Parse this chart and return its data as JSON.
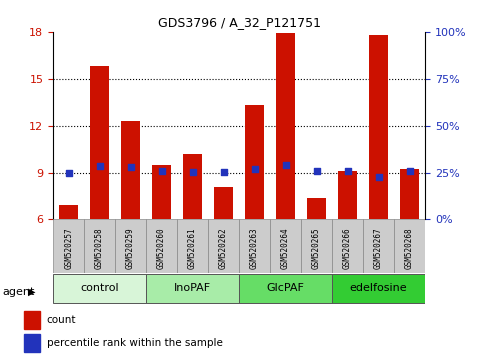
{
  "title": "GDS3796 / A_32_P121751",
  "categories": [
    "GSM520257",
    "GSM520258",
    "GSM520259",
    "GSM520260",
    "GSM520261",
    "GSM520262",
    "GSM520263",
    "GSM520264",
    "GSM520265",
    "GSM520266",
    "GSM520267",
    "GSM520268"
  ],
  "count_values": [
    6.9,
    15.8,
    12.3,
    9.5,
    10.2,
    8.1,
    13.3,
    17.9,
    7.4,
    9.1,
    17.8,
    9.2
  ],
  "percentile_values": [
    25.0,
    28.5,
    28.0,
    26.0,
    25.5,
    25.5,
    27.0,
    29.0,
    25.8,
    26.0,
    22.5,
    26.0
  ],
  "ylim_left": [
    6,
    18
  ],
  "ylim_right": [
    0,
    100
  ],
  "yticks_left": [
    6,
    9,
    12,
    15,
    18
  ],
  "yticks_right": [
    0,
    25,
    50,
    75,
    100
  ],
  "ytick_labels_right": [
    "0%",
    "25%",
    "50%",
    "75%",
    "100%"
  ],
  "bar_color": "#cc1100",
  "dot_color": "#2233bb",
  "bar_width": 0.6,
  "groups": [
    {
      "label": "control",
      "start": 0,
      "end": 3,
      "color": "#d8f5d8"
    },
    {
      "label": "InoPAF",
      "start": 3,
      "end": 6,
      "color": "#a8eca8"
    },
    {
      "label": "GlcPAF",
      "start": 6,
      "end": 9,
      "color": "#66dd66"
    },
    {
      "label": "edelfosine",
      "start": 9,
      "end": 12,
      "color": "#33cc33"
    }
  ],
  "axis_label_color_left": "#cc1100",
  "axis_label_color_right": "#2233bb",
  "legend_count": "count",
  "legend_percentile": "percentile rank within the sample"
}
